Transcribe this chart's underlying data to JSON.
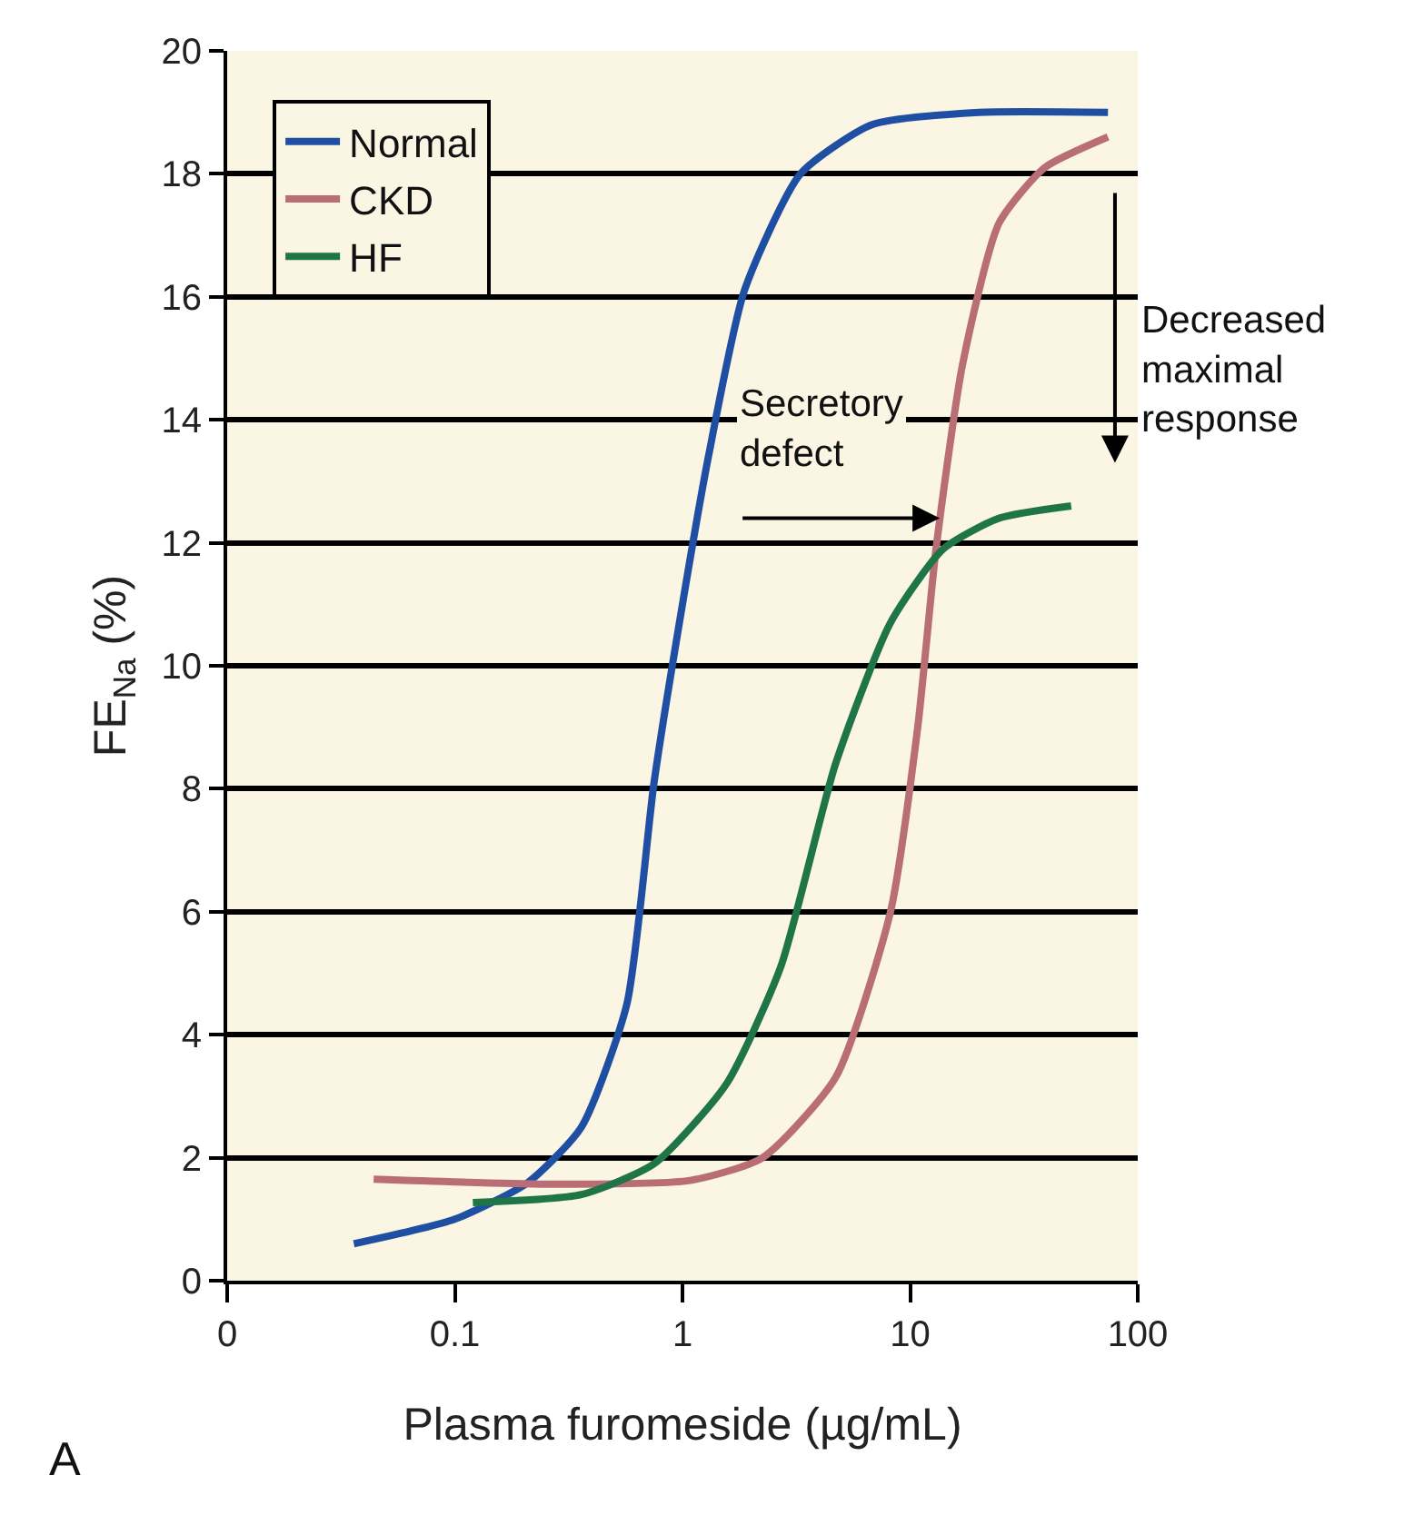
{
  "chart_data": {
    "type": "line",
    "xlabel": "Plasma furomeside (µg/mL)",
    "ylabel": "FE$_{Na}$ (%)",
    "log": "x",
    "xlim": [
      0.01,
      100
    ],
    "xticks": [
      {
        "value": 0.01,
        "label": "0"
      },
      0.1,
      1,
      10,
      100
    ],
    "ylim": [
      0,
      20
    ],
    "yticks": [
      0,
      2,
      4,
      6,
      8,
      10,
      12,
      14,
      16,
      18,
      20
    ],
    "grid": "y",
    "legend": "top left",
    "series": [
      {
        "name": "Normal",
        "color": "#1f4fa3",
        "x": [
          0.036,
          0.1,
          0.21,
          0.36,
          0.57,
          0.75,
          1.0,
          1.3,
          1.87,
          3.3,
          6.8,
          20,
          74
        ],
        "values": [
          0.6,
          1.0,
          1.6,
          2.5,
          4.5,
          8.1,
          11.0,
          13.4,
          16.1,
          18.0,
          18.8,
          19.0,
          19.0
        ]
      },
      {
        "name": "CKD",
        "color": "#b86e74",
        "x": [
          0.044,
          0.25,
          1.08,
          2.25,
          4.7,
          8.2,
          10.8,
          13,
          17,
          24.6,
          39,
          74
        ],
        "values": [
          1.65,
          1.57,
          1.63,
          2.0,
          3.3,
          6.0,
          9.0,
          11.9,
          14.9,
          17.2,
          18.1,
          18.6
        ]
      },
      {
        "name": "HF",
        "color": "#1f7547",
        "x": [
          0.12,
          0.36,
          0.75,
          1.56,
          2.7,
          4.7,
          8.2,
          14,
          24.6,
          51
        ],
        "values": [
          1.27,
          1.4,
          1.9,
          3.2,
          5.1,
          8.4,
          10.7,
          11.9,
          12.4,
          12.6
        ]
      }
    ],
    "annotations": [
      {
        "text": "Secretory defect",
        "x": 13.5,
        "y": 12.4
      },
      "Decreased maximal response",
      "A"
    ]
  }
}
